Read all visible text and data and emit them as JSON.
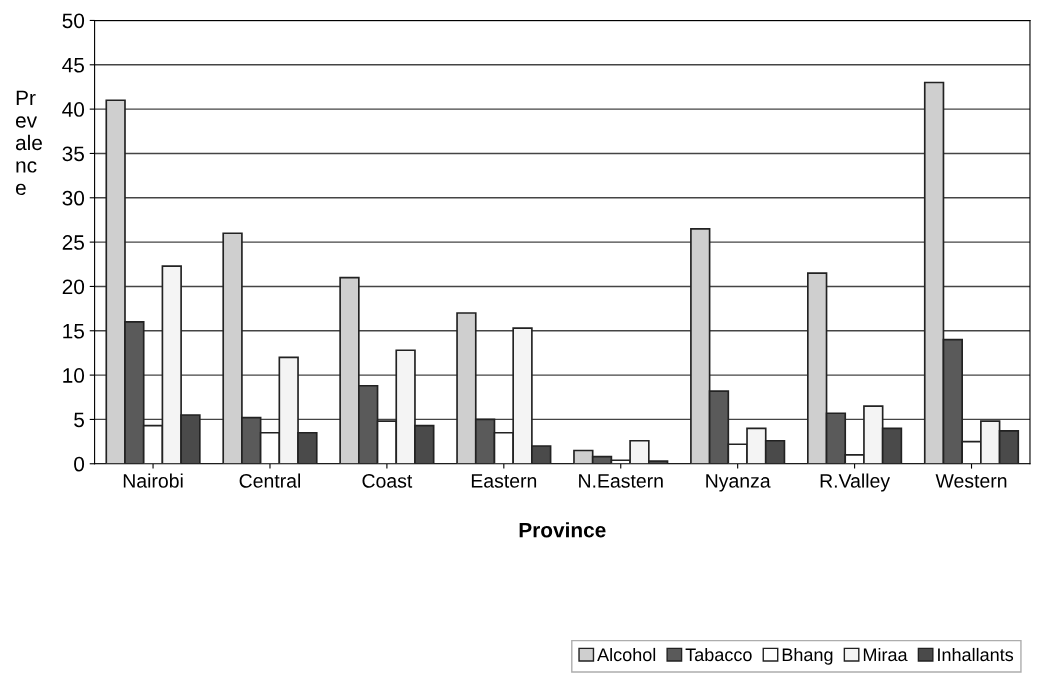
{
  "chart_data": {
    "type": "bar",
    "xlabel": "Province",
    "ylabel": "Pr\nev\nale\nnc\ne",
    "categories": [
      "Nairobi",
      "Central",
      "Coast",
      "Eastern",
      "N.Eastern",
      "Nyanza",
      "R.Valley",
      "Western"
    ],
    "series": [
      {
        "name": "Alcohol",
        "color": "#cfcfcf",
        "values": [
          41,
          26,
          21,
          17,
          1.5,
          26.5,
          21.5,
          43
        ]
      },
      {
        "name": "Tabacco",
        "color": "#5a5a5a",
        "values": [
          16,
          5.2,
          8.8,
          5,
          0.8,
          8.2,
          5.7,
          14
        ]
      },
      {
        "name": "Bhang",
        "color": "#ffffff",
        "values": [
          4.3,
          3.5,
          4.8,
          3.5,
          0.4,
          2.2,
          1,
          2.5
        ]
      },
      {
        "name": "Miraa",
        "color": "#f4f4f4",
        "values": [
          22.3,
          12,
          12.8,
          15.3,
          2.6,
          4,
          6.5,
          4.8
        ]
      },
      {
        "name": "Inhallants",
        "color": "#4a4a4a",
        "values": [
          5.5,
          3.5,
          4.3,
          2,
          0.3,
          2.6,
          4,
          3.7
        ]
      }
    ],
    "ylim": [
      0,
      50
    ],
    "yticks": [
      0,
      5,
      10,
      15,
      20,
      25,
      30,
      35,
      40,
      45,
      50
    ],
    "grid": "y",
    "legend": "bottom right"
  }
}
